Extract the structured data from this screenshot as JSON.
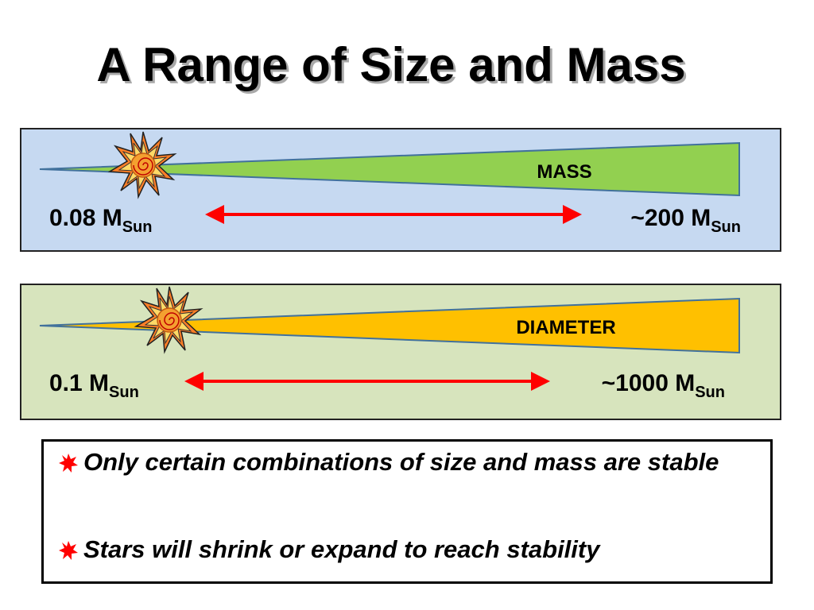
{
  "title": "A Range of Size and Mass",
  "panels": [
    {
      "label": "MASS",
      "left": {
        "text": "0.08 M",
        "sub": "Sun"
      },
      "right": {
        "text": "~200 M",
        "sub": "Sun"
      }
    },
    {
      "label": "DIAMETER",
      "left": {
        "text": "0.1 M",
        "sub": "Sun"
      },
      "right": {
        "text": "~1000 M",
        "sub": "Sun"
      }
    }
  ],
  "bullets": [
    "Only certain combinations of size and mass are stable",
    "Stars will shrink or expand to reach stability"
  ]
}
